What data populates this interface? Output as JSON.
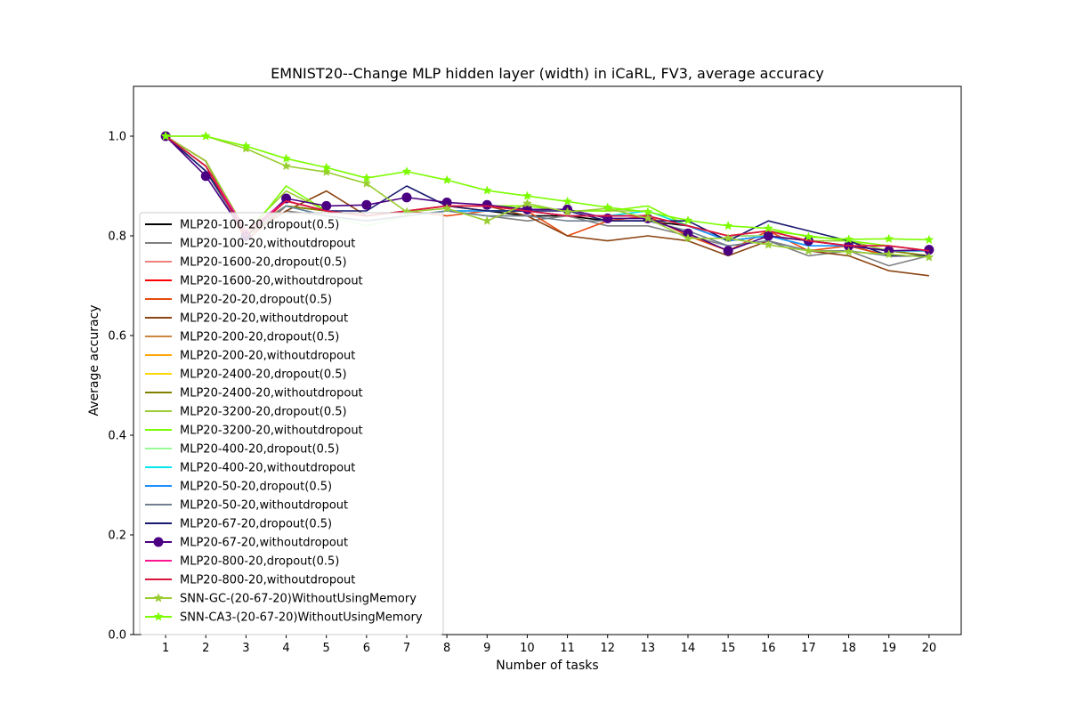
{
  "chart_data": {
    "type": "line",
    "title": "EMNIST20--Change MLP hidden layer (width) in iCaRL, FV3, average accuracy",
    "xlabel": "Number of tasks",
    "ylabel": "Average accuracy",
    "xlim": [
      0.2,
      20.8
    ],
    "ylim": [
      0.0,
      1.1
    ],
    "x": [
      1,
      2,
      3,
      4,
      5,
      6,
      7,
      8,
      9,
      10,
      11,
      12,
      13,
      14,
      15,
      16,
      17,
      18,
      19,
      20
    ],
    "yticks": [
      "0.0",
      "0.2",
      "0.4",
      "0.6",
      "0.8",
      "1.0"
    ],
    "grid": false,
    "legend_position": "lower-left",
    "series": [
      {
        "name": "MLP20-100-20,dropout(0.5)",
        "color": "#000000",
        "marker": "none",
        "values": [
          1.0,
          0.93,
          0.81,
          0.86,
          0.85,
          0.84,
          0.85,
          0.86,
          0.85,
          0.84,
          0.84,
          0.83,
          0.83,
          0.82,
          0.79,
          0.8,
          0.79,
          0.78,
          0.76,
          0.76
        ]
      },
      {
        "name": "MLP20-100-20,withoutdropout",
        "color": "#808080",
        "marker": "none",
        "values": [
          1.0,
          0.94,
          0.8,
          0.85,
          0.84,
          0.83,
          0.84,
          0.85,
          0.84,
          0.83,
          0.84,
          0.82,
          0.82,
          0.8,
          0.78,
          0.79,
          0.76,
          0.77,
          0.74,
          0.76
        ]
      },
      {
        "name": "MLP20-1600-20,dropout(0.5)",
        "color": "#f08080",
        "marker": "none",
        "values": [
          1.0,
          0.94,
          0.81,
          0.87,
          0.85,
          0.84,
          0.85,
          0.86,
          0.85,
          0.85,
          0.84,
          0.84,
          0.84,
          0.82,
          0.8,
          0.81,
          0.79,
          0.78,
          0.78,
          0.77
        ]
      },
      {
        "name": "MLP20-1600-20,withoutdropout",
        "color": "#ff0000",
        "marker": "none",
        "values": [
          1.0,
          0.95,
          0.8,
          0.87,
          0.85,
          0.84,
          0.85,
          0.86,
          0.86,
          0.85,
          0.84,
          0.84,
          0.84,
          0.82,
          0.8,
          0.8,
          0.79,
          0.78,
          0.77,
          0.77
        ]
      },
      {
        "name": "MLP20-20-20,dropout(0.5)",
        "color": "#e84a0f",
        "marker": "none",
        "values": [
          1.0,
          0.94,
          0.79,
          0.86,
          0.85,
          0.84,
          0.85,
          0.84,
          0.85,
          0.85,
          0.8,
          0.83,
          0.84,
          0.8,
          0.77,
          0.81,
          0.77,
          0.78,
          0.76,
          0.76
        ]
      },
      {
        "name": "MLP20-20-20,withoutdropout",
        "color": "#8b4513",
        "marker": "none",
        "values": [
          1.0,
          0.95,
          0.8,
          0.85,
          0.89,
          0.84,
          0.85,
          0.86,
          0.86,
          0.84,
          0.8,
          0.79,
          0.8,
          0.79,
          0.76,
          0.79,
          0.77,
          0.76,
          0.73,
          0.72
        ]
      },
      {
        "name": "MLP20-200-20,dropout(0.5)",
        "color": "#cd853f",
        "marker": "none",
        "values": [
          1.0,
          0.94,
          0.81,
          0.86,
          0.85,
          0.84,
          0.85,
          0.86,
          0.86,
          0.85,
          0.84,
          0.84,
          0.84,
          0.82,
          0.8,
          0.8,
          0.79,
          0.78,
          0.77,
          0.76
        ]
      },
      {
        "name": "MLP20-200-20,withoutdropout",
        "color": "#ffa500",
        "marker": "none",
        "values": [
          1.0,
          0.94,
          0.8,
          0.86,
          0.85,
          0.84,
          0.85,
          0.86,
          0.85,
          0.85,
          0.84,
          0.84,
          0.84,
          0.82,
          0.8,
          0.81,
          0.79,
          0.78,
          0.77,
          0.77
        ]
      },
      {
        "name": "MLP20-2400-20,dropout(0.5)",
        "color": "#ffd700",
        "marker": "none",
        "values": [
          1.0,
          0.94,
          0.81,
          0.87,
          0.85,
          0.84,
          0.85,
          0.86,
          0.86,
          0.85,
          0.84,
          0.84,
          0.84,
          0.82,
          0.8,
          0.81,
          0.79,
          0.78,
          0.77,
          0.77
        ]
      },
      {
        "name": "MLP20-2400-20,withoutdropout",
        "color": "#808000",
        "marker": "none",
        "values": [
          1.0,
          0.95,
          0.8,
          0.86,
          0.85,
          0.84,
          0.85,
          0.86,
          0.85,
          0.85,
          0.84,
          0.84,
          0.84,
          0.82,
          0.8,
          0.8,
          0.79,
          0.78,
          0.77,
          0.76
        ]
      },
      {
        "name": "MLP20-3200-20,dropout(0.5)",
        "color": "#9acd32",
        "marker": "none",
        "values": [
          1.0,
          0.95,
          0.81,
          0.89,
          0.85,
          0.84,
          0.85,
          0.86,
          0.86,
          0.86,
          0.85,
          0.85,
          0.85,
          0.82,
          0.8,
          0.81,
          0.79,
          0.79,
          0.77,
          0.77
        ]
      },
      {
        "name": "MLP20-3200-20,withoutdropout",
        "color": "#7cfc00",
        "marker": "none",
        "values": [
          1.0,
          0.94,
          0.8,
          0.9,
          0.85,
          0.84,
          0.85,
          0.86,
          0.86,
          0.86,
          0.85,
          0.85,
          0.86,
          0.82,
          0.8,
          0.81,
          0.8,
          0.79,
          0.78,
          0.77
        ]
      },
      {
        "name": "MLP20-400-20,dropout(0.5)",
        "color": "#98fb98",
        "marker": "none",
        "values": [
          1.0,
          0.94,
          0.8,
          0.86,
          0.84,
          0.82,
          0.84,
          0.85,
          0.85,
          0.85,
          0.84,
          0.84,
          0.84,
          0.82,
          0.8,
          0.8,
          0.79,
          0.78,
          0.77,
          0.77
        ]
      },
      {
        "name": "MLP20-400-20,withoutdropout",
        "color": "#00e5ee",
        "marker": "none",
        "values": [
          1.0,
          0.94,
          0.8,
          0.86,
          0.84,
          0.83,
          0.84,
          0.85,
          0.85,
          0.85,
          0.84,
          0.84,
          0.85,
          0.82,
          0.79,
          0.8,
          0.78,
          0.78,
          0.77,
          0.77
        ]
      },
      {
        "name": "MLP20-50-20,dropout(0.5)",
        "color": "#1e90ff",
        "marker": "none",
        "values": [
          1.0,
          0.93,
          0.8,
          0.86,
          0.84,
          0.83,
          0.84,
          0.85,
          0.85,
          0.85,
          0.84,
          0.84,
          0.84,
          0.82,
          0.79,
          0.8,
          0.78,
          0.78,
          0.77,
          0.77
        ]
      },
      {
        "name": "MLP20-50-20,withoutdropout",
        "color": "#708090",
        "marker": "none",
        "values": [
          1.0,
          0.93,
          0.8,
          0.86,
          0.84,
          0.83,
          0.84,
          0.85,
          0.84,
          0.84,
          0.83,
          0.83,
          0.83,
          0.81,
          0.78,
          0.79,
          0.77,
          0.77,
          0.76,
          0.76
        ]
      },
      {
        "name": "MLP20-67-20,dropout(0.5)",
        "color": "#191970",
        "marker": "none",
        "values": [
          1.0,
          0.93,
          0.81,
          0.87,
          0.85,
          0.85,
          0.9,
          0.86,
          0.85,
          0.85,
          0.85,
          0.83,
          0.83,
          0.83,
          0.79,
          0.83,
          0.81,
          0.79,
          0.76,
          0.76
        ]
      },
      {
        "name": "MLP20-67-20,withoutdropout",
        "color": "#4b0082",
        "marker": "circle",
        "values": [
          1.0,
          0.92,
          0.8,
          0.875,
          0.86,
          0.862,
          0.877,
          0.867,
          0.862,
          0.853,
          0.853,
          0.835,
          0.835,
          0.805,
          0.77,
          0.8,
          0.79,
          0.78,
          0.77,
          0.772
        ]
      },
      {
        "name": "MLP20-800-20,dropout(0.5)",
        "color": "#ff1493",
        "marker": "none",
        "values": [
          1.0,
          0.94,
          0.81,
          0.87,
          0.85,
          0.84,
          0.85,
          0.86,
          0.86,
          0.85,
          0.84,
          0.84,
          0.84,
          0.82,
          0.8,
          0.81,
          0.79,
          0.78,
          0.78,
          0.77
        ]
      },
      {
        "name": "MLP20-800-20,withoutdropout",
        "color": "#dc143c",
        "marker": "none",
        "values": [
          1.0,
          0.94,
          0.8,
          0.87,
          0.85,
          0.84,
          0.85,
          0.86,
          0.86,
          0.85,
          0.84,
          0.84,
          0.84,
          0.82,
          0.8,
          0.81,
          0.79,
          0.78,
          0.78,
          0.77
        ]
      },
      {
        "name": "SNN-GC-(20-67-20)WithoutUsingMemory",
        "color": "#9acd32",
        "marker": "star",
        "values": [
          1.0,
          1.0,
          0.975,
          0.94,
          0.928,
          0.905,
          0.848,
          0.855,
          0.83,
          0.865,
          0.848,
          0.855,
          0.835,
          0.795,
          0.795,
          0.782,
          0.77,
          0.768,
          0.763,
          0.757
        ]
      },
      {
        "name": "SNN-CA3-(20-67-20)WithoutUsingMemory",
        "color": "#7cfc00",
        "marker": "star",
        "values": [
          1.0,
          1.0,
          0.98,
          0.955,
          0.937,
          0.916,
          0.929,
          0.912,
          0.891,
          0.88,
          0.869,
          0.857,
          0.848,
          0.831,
          0.82,
          0.815,
          0.798,
          0.793,
          0.794,
          0.792
        ]
      }
    ]
  }
}
